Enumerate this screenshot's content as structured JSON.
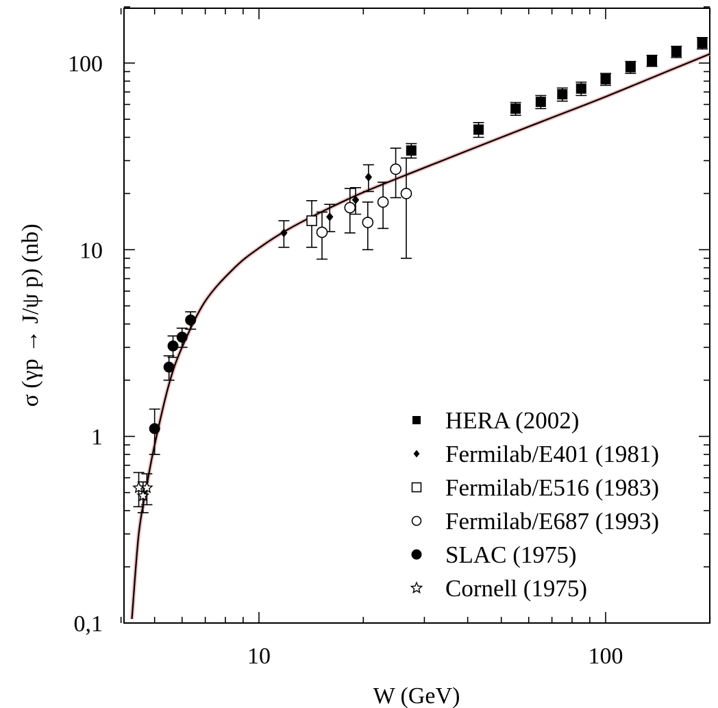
{
  "chart_data": {
    "type": "scatter",
    "xlabel": "W (GeV)",
    "ylabel": "σ (γp → J/ψ p)  (nb)",
    "x_scale": "log",
    "y_scale": "log",
    "xlim": [
      4.0,
      200
    ],
    "ylim": [
      0.1,
      200
    ],
    "x_tick_values": [
      10,
      100
    ],
    "x_tick_labels": [
      "10",
      "100"
    ],
    "y_tick_values": [
      0.1,
      1,
      10,
      100
    ],
    "y_tick_labels": [
      "0,1",
      "1",
      "10",
      "100"
    ],
    "grid": false,
    "legend_position": "bottom-right",
    "series": [
      {
        "name": "HERA (2002)",
        "marker": "filled-square",
        "points": [
          {
            "x": 27.5,
            "y": 34,
            "err": 3
          },
          {
            "x": 43,
            "y": 44,
            "err": 4
          },
          {
            "x": 55,
            "y": 57,
            "err": 4.5
          },
          {
            "x": 65,
            "y": 62,
            "err": 5
          },
          {
            "x": 75,
            "y": 68,
            "err": 5.5
          },
          {
            "x": 85,
            "y": 73,
            "err": 6
          },
          {
            "x": 100,
            "y": 82,
            "err": 6
          },
          {
            "x": 118,
            "y": 95,
            "err": 7
          },
          {
            "x": 136,
            "y": 103,
            "err": 7
          },
          {
            "x": 160,
            "y": 115,
            "err": 8
          },
          {
            "x": 190,
            "y": 128,
            "err": 9
          }
        ]
      },
      {
        "name": "Fermilab/E401 (1981)",
        "marker": "filled-diamond",
        "points": [
          {
            "x": 11.8,
            "y": 12.3,
            "err": 2
          },
          {
            "x": 16,
            "y": 15,
            "err": 2.5
          },
          {
            "x": 19,
            "y": 18.5,
            "err": 3
          },
          {
            "x": 20.7,
            "y": 24.5,
            "err": 4
          }
        ]
      },
      {
        "name": "Fermilab/E516 (1983)",
        "marker": "open-square",
        "points": [
          {
            "x": 14.2,
            "y": 14.3,
            "err": 4
          }
        ]
      },
      {
        "name": "Fermilab/E687 (1993)",
        "marker": "open-circle",
        "points": [
          {
            "x": 15.2,
            "y": 12.4,
            "err": 3.5
          },
          {
            "x": 18.3,
            "y": 16.8,
            "err": 4.5
          },
          {
            "x": 20.6,
            "y": 14,
            "err": 4
          },
          {
            "x": 22.8,
            "y": 18,
            "err": 5
          },
          {
            "x": 24.8,
            "y": 27,
            "err": 8
          },
          {
            "x": 26.6,
            "y": 20,
            "err": 11
          }
        ]
      },
      {
        "name": "SLAC (1975)",
        "marker": "filled-circle",
        "points": [
          {
            "x": 5.0,
            "y": 1.1,
            "err": 0.3
          },
          {
            "x": 5.5,
            "y": 2.35,
            "err": 0.35
          },
          {
            "x": 5.65,
            "y": 3.05,
            "err": 0.4
          },
          {
            "x": 6.0,
            "y": 3.4,
            "err": 0.4
          },
          {
            "x": 6.35,
            "y": 4.2,
            "err": 0.45
          }
        ]
      },
      {
        "name": "Cornell (1975)",
        "marker": "open-star",
        "points": [
          {
            "x": 4.5,
            "y": 0.53,
            "err": 0.11
          },
          {
            "x": 4.63,
            "y": 0.48,
            "err": 0.09
          },
          {
            "x": 4.75,
            "y": 0.53,
            "err": 0.1
          }
        ]
      }
    ],
    "fit_curve": {
      "color": "#000000",
      "band_color": "#e88a8a",
      "points": [
        {
          "x": 4.3,
          "y": 0.105
        },
        {
          "x": 4.5,
          "y": 0.3
        },
        {
          "x": 4.75,
          "y": 0.55
        },
        {
          "x": 5.0,
          "y": 0.9
        },
        {
          "x": 5.5,
          "y": 1.9
        },
        {
          "x": 6.0,
          "y": 3.0
        },
        {
          "x": 7.0,
          "y": 5.3
        },
        {
          "x": 8.5,
          "y": 8.0
        },
        {
          "x": 10,
          "y": 10.2
        },
        {
          "x": 12,
          "y": 12.7
        },
        {
          "x": 15,
          "y": 15.8
        },
        {
          "x": 20,
          "y": 20.3
        },
        {
          "x": 30,
          "y": 27.5
        },
        {
          "x": 50,
          "y": 40
        },
        {
          "x": 70,
          "y": 51
        },
        {
          "x": 100,
          "y": 66
        },
        {
          "x": 150,
          "y": 90
        },
        {
          "x": 200,
          "y": 112
        }
      ]
    }
  }
}
